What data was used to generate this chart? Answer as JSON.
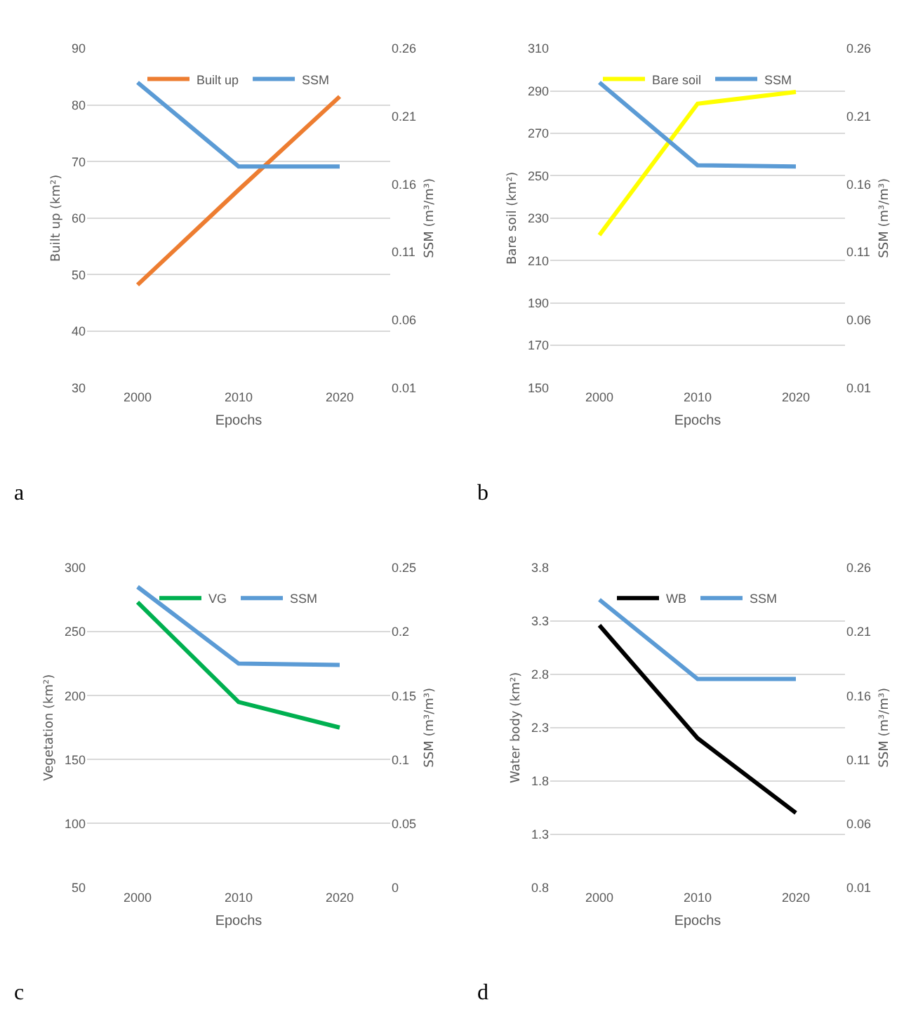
{
  "chart_data": [
    {
      "type": "line",
      "categories": [
        "2000",
        "2010",
        "2020"
      ],
      "xlabel": "Epochs",
      "ylabel": "Built up (km²)",
      "y2label": "SSM (m³/m³)",
      "ylim": [
        30,
        90
      ],
      "yticks": [
        30,
        40,
        50,
        60,
        70,
        80,
        90
      ],
      "y2lim": [
        0.01,
        0.26
      ],
      "y2ticks": [
        0.01,
        0.06,
        0.11,
        0.16,
        0.21,
        0.26
      ],
      "grid": "y",
      "legend": "top",
      "annotations": [
        "a"
      ],
      "series": [
        {
          "name": "Built up",
          "color": "#ed7d31",
          "values": [
            48.2,
            65,
            81.5
          ]
        },
        {
          "name": "SSM",
          "color": "#5b9bd5",
          "axis": "y2",
          "values": [
            0.235,
            0.173,
            0.173
          ]
        }
      ]
    },
    {
      "type": "line",
      "categories": [
        "2000",
        "2010",
        "2020"
      ],
      "xlabel": "Epochs",
      "ylabel": "Bare soil (km²)",
      "y2label": "SSM (m³/m³)",
      "ylim": [
        150,
        310
      ],
      "yticks": [
        150,
        170,
        190,
        210,
        230,
        250,
        270,
        290,
        310
      ],
      "y2lim": [
        0.01,
        0.26
      ],
      "y2ticks": [
        0.01,
        0.06,
        0.11,
        0.16,
        0.21,
        0.26
      ],
      "grid": "y",
      "legend": "top",
      "annotations": [
        "b"
      ],
      "series": [
        {
          "name": "Bare soil",
          "color": "#ffff00",
          "values": [
            222,
            284,
            289.5
          ]
        },
        {
          "name": "SSM",
          "color": "#5b9bd5",
          "axis": "y2",
          "values": [
            0.235,
            0.174,
            0.173
          ]
        }
      ]
    },
    {
      "type": "line",
      "categories": [
        "2000",
        "2010",
        "2020"
      ],
      "xlabel": "Epochs",
      "ylabel": "Vegetation (km²)",
      "y2label": "SSM (m³/m³)",
      "ylim": [
        50,
        300
      ],
      "yticks": [
        50,
        100,
        150,
        200,
        250,
        300
      ],
      "y2lim": [
        0,
        0.25
      ],
      "y2ticks": [
        0,
        0.05,
        0.1,
        0.15,
        0.2,
        0.25
      ],
      "grid": "y",
      "legend": "top",
      "annotations": [
        "c"
      ],
      "series": [
        {
          "name": "VG",
          "color": "#00b050",
          "values": [
            273,
            195,
            175
          ]
        },
        {
          "name": "SSM",
          "color": "#5b9bd5",
          "axis": "y2",
          "values": [
            0.235,
            0.175,
            0.174
          ]
        }
      ]
    },
    {
      "type": "line",
      "categories": [
        "2000",
        "2010",
        "2020"
      ],
      "xlabel": "Epochs",
      "ylabel": "Water body (km²)",
      "y2label": "SSM (m³/m³)",
      "ylim": [
        0.8,
        3.8
      ],
      "yticks": [
        0.8,
        1.3,
        1.8,
        2.3,
        2.8,
        3.3,
        3.8
      ],
      "y2lim": [
        0.01,
        0.26
      ],
      "y2ticks": [
        0.01,
        0.06,
        0.11,
        0.16,
        0.21,
        0.26
      ],
      "grid": "y",
      "legend": "top",
      "annotations": [
        "d"
      ],
      "series": [
        {
          "name": "WB",
          "color": "#000000",
          "values": [
            3.26,
            2.2,
            1.5
          ]
        },
        {
          "name": "SSM",
          "color": "#5b9bd5",
          "axis": "y2",
          "values": [
            0.235,
            0.173,
            0.173
          ]
        }
      ]
    }
  ]
}
